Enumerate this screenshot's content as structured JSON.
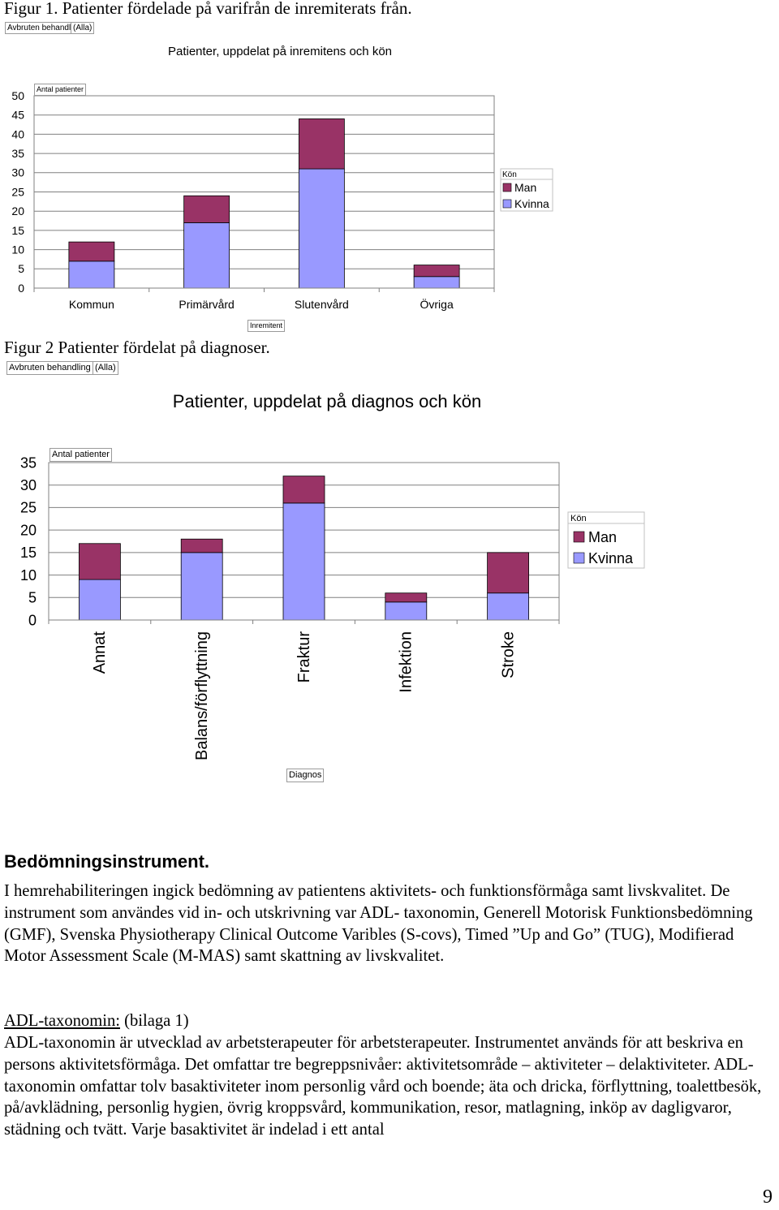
{
  "figure1": {
    "caption": "Figur 1. Patienter fördelade på varifrån de inremiterats från.",
    "filter_field": "Avbruten behandling",
    "filter_value": "(Alla)",
    "value_field": "Antal patienter",
    "row_field": "Inremitent",
    "legend_title": "Kön"
  },
  "figure2": {
    "caption": "Figur 2 Patienter fördelat på diagnoser.",
    "filter_field": "Avbruten behandling",
    "filter_value": "(Alla)",
    "value_field": "Antal patienter",
    "row_field": "Diagnos",
    "legend_title": "Kön"
  },
  "chart_data": [
    {
      "type": "bar",
      "stacked": true,
      "title": "Patienter, uppdelat på inremitens och kön",
      "xlabel": "Inremitent",
      "ylabel": "Antal patienter",
      "categories": [
        "Kommun",
        "Primärvård",
        "Slutenvård",
        "Övriga"
      ],
      "series": [
        {
          "name": "Kvinna",
          "values": [
            7,
            17,
            31,
            3
          ],
          "color": "#9999ff"
        },
        {
          "name": "Man",
          "values": [
            5,
            7,
            13,
            3
          ],
          "color": "#993366"
        }
      ],
      "ylim": [
        0,
        50
      ],
      "yticks": [
        0,
        5,
        10,
        15,
        20,
        25,
        30,
        35,
        40,
        45,
        50
      ],
      "grid": true,
      "legend_placement": "right"
    },
    {
      "type": "bar",
      "stacked": true,
      "title": "Patienter, uppdelat på diagnos och kön",
      "xlabel": "Diagnos",
      "ylabel": "Antal patienter",
      "categories": [
        "Annat",
        "Balans/förflyttning",
        "Fraktur",
        "Infektion",
        "Stroke"
      ],
      "series": [
        {
          "name": "Kvinna",
          "values": [
            9,
            15,
            26,
            4,
            6
          ],
          "color": "#9999ff"
        },
        {
          "name": "Man",
          "values": [
            8,
            3,
            6,
            2,
            9
          ],
          "color": "#993366"
        }
      ],
      "ylim": [
        0,
        35
      ],
      "yticks": [
        0,
        5,
        10,
        15,
        20,
        25,
        30,
        35
      ],
      "grid": true,
      "legend_placement": "right"
    }
  ],
  "section": {
    "heading": "Bedömningsinstrument.",
    "para1": "I hemrehabiliteringen ingick bedömning av patientens aktivitets- och funktionsförmåga samt livskvalitet. De instrument som användes vid in- och utskrivning var ADL- taxonomin, Generell Motorisk Funktionsbedömning (GMF), Svenska Physiotherapy Clinical Outcome Varibles (S-covs), Timed ”Up and Go” (TUG), Modifierad Motor Assessment Scale (M-MAS) samt skattning av livskvalitet.",
    "sub_title": "ADL-taxonomin:",
    "sub_ref": " (bilaga 1)",
    "para2": "ADL-taxonomin är utvecklad av arbetsterapeuter för arbetsterapeuter. Instrumentet används för att beskriva en persons aktivitetsförmåga. Det omfattar tre begreppsnivåer: aktivitetsområde – aktiviteter – delaktiviteter. ADL-taxonomin omfattar tolv basaktiviteter inom personlig vård och boende; äta och dricka, förflyttning, toalettbesök, på/avklädning, personlig hygien, övrig kroppsvård, kommunikation, resor, matlagning, inköp av dagligvaror, städning och tvätt. Varje basaktivitet är indelad i ett antal"
  },
  "page_number": "9"
}
